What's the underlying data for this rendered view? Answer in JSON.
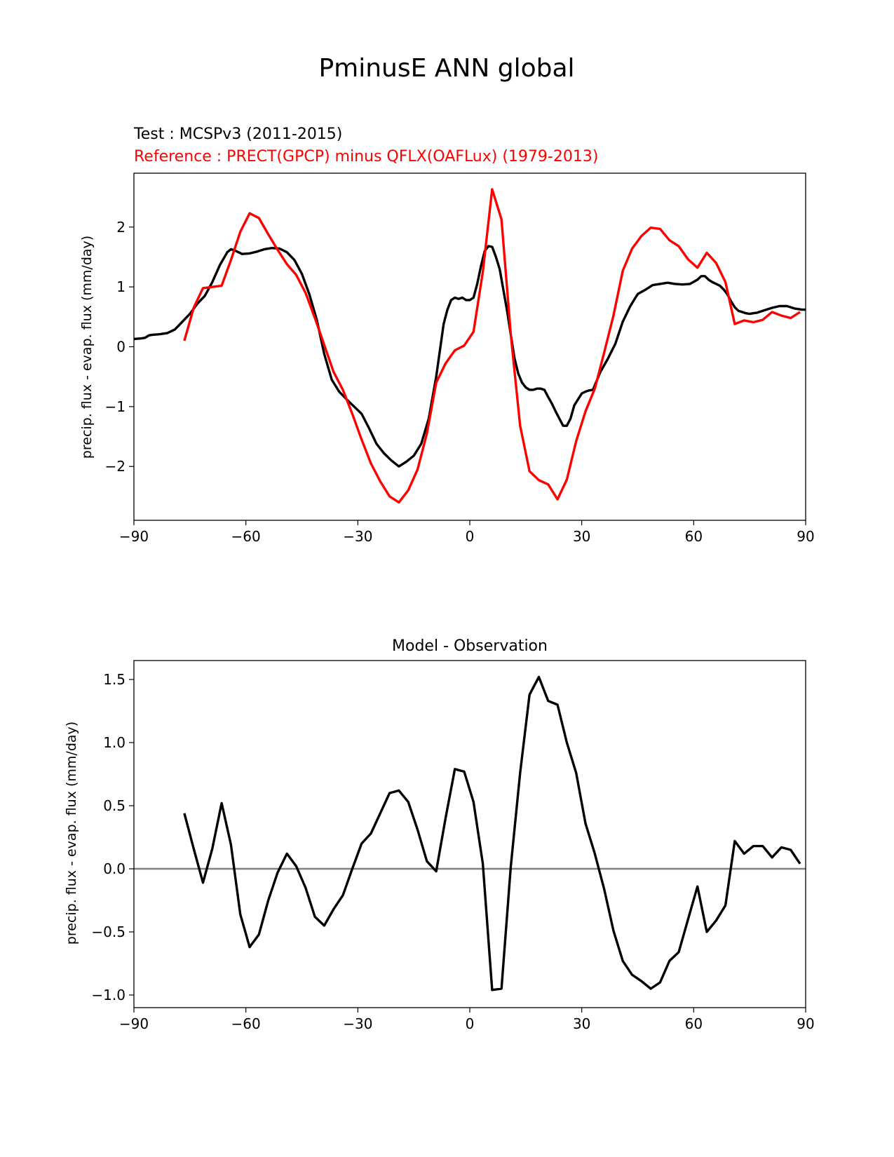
{
  "figure": {
    "title": "PminusE ANN global"
  },
  "chart_data": [
    {
      "type": "line",
      "test_label": "Test : MCSPv3 (2011-2015)",
      "ref_label": "Reference : PRECT(GPCP) minus QFLX(OAFLux) (1979-2013)",
      "ylabel": "precip. flux - evap. flux (mm/day)",
      "xlim": [
        -90,
        90
      ],
      "ylim": [
        -2.9,
        2.9
      ],
      "xticks": [
        -90,
        -60,
        -30,
        0,
        30,
        60,
        90
      ],
      "xtick_labels": [
        "−90",
        "−60",
        "−30",
        "0",
        "30",
        "60",
        "90"
      ],
      "yticks": [
        -2,
        -1,
        0,
        1,
        2
      ],
      "ytick_labels": [
        "−2",
        "−1",
        "0",
        "1",
        "2"
      ],
      "grid": false,
      "series": [
        {
          "color": "#000000",
          "x": [
            -90,
            -88,
            -87,
            -86,
            -85,
            -83,
            -81,
            -79,
            -77,
            -75,
            -73,
            -71,
            -69,
            -67,
            -65,
            -64,
            -63,
            -61,
            -59,
            -57,
            -55,
            -53,
            -51,
            -49,
            -47,
            -45,
            -43,
            -41,
            -39,
            -37,
            -35,
            -33,
            -31,
            -29,
            -27,
            -25,
            -23,
            -21,
            -19,
            -17,
            -15,
            -13,
            -11,
            -9,
            -7,
            -6,
            -5,
            -4,
            -3,
            -2,
            -1,
            0,
            1,
            2,
            3,
            4,
            5,
            6,
            7,
            8,
            9,
            10,
            11,
            12,
            13,
            14,
            15,
            16,
            17,
            18,
            19,
            20,
            21,
            22,
            23,
            24,
            25,
            26,
            27,
            28,
            29,
            30,
            31,
            32,
            33,
            35,
            37,
            39,
            41,
            43,
            45,
            47,
            49,
            51,
            53,
            55,
            57,
            59,
            61,
            62,
            63,
            64,
            65,
            66,
            67,
            68,
            69,
            70,
            71,
            72,
            73,
            74,
            75,
            76,
            77,
            79,
            81,
            83,
            85,
            87,
            89,
            90
          ],
          "y": [
            0.13,
            0.14,
            0.15,
            0.19,
            0.2,
            0.21,
            0.23,
            0.29,
            0.42,
            0.55,
            0.72,
            0.85,
            1.08,
            1.36,
            1.58,
            1.63,
            1.61,
            1.55,
            1.56,
            1.59,
            1.63,
            1.65,
            1.64,
            1.58,
            1.45,
            1.22,
            0.88,
            0.45,
            -0.12,
            -0.55,
            -0.75,
            -0.88,
            -1.0,
            -1.12,
            -1.36,
            -1.62,
            -1.78,
            -1.9,
            -2.0,
            -1.92,
            -1.82,
            -1.62,
            -1.2,
            -0.5,
            0.38,
            0.62,
            0.78,
            0.82,
            0.8,
            0.82,
            0.78,
            0.78,
            0.82,
            1.05,
            1.35,
            1.6,
            1.68,
            1.67,
            1.5,
            1.3,
            0.95,
            0.6,
            0.2,
            -0.2,
            -0.45,
            -0.6,
            -0.68,
            -0.72,
            -0.72,
            -0.7,
            -0.7,
            -0.72,
            -0.84,
            -0.95,
            -1.08,
            -1.2,
            -1.32,
            -1.32,
            -1.2,
            -0.98,
            -0.88,
            -0.78,
            -0.75,
            -0.73,
            -0.72,
            -0.42,
            -0.2,
            0.05,
            0.42,
            0.68,
            0.88,
            0.95,
            1.03,
            1.05,
            1.07,
            1.05,
            1.04,
            1.05,
            1.12,
            1.18,
            1.18,
            1.12,
            1.08,
            1.05,
            1.02,
            0.96,
            0.88,
            0.76,
            0.66,
            0.6,
            0.58,
            0.56,
            0.55,
            0.56,
            0.57,
            0.61,
            0.65,
            0.68,
            0.68,
            0.64,
            0.62,
            0.62
          ]
        },
        {
          "color": "#ff0000",
          "x": [
            -76.5,
            -74,
            -71.5,
            -69,
            -66.5,
            -64,
            -61.5,
            -59,
            -56.5,
            -54,
            -51.5,
            -49,
            -46.5,
            -44,
            -41.5,
            -39,
            -36.5,
            -34,
            -31.5,
            -29,
            -26.5,
            -24,
            -21.5,
            -19,
            -16.5,
            -14,
            -11.5,
            -9,
            -6.5,
            -4,
            -1.5,
            1,
            3.5,
            6,
            8.5,
            11,
            13.5,
            16,
            18.5,
            21,
            23.5,
            26,
            28.5,
            31,
            33.5,
            36,
            38.5,
            41,
            43.5,
            46,
            48.5,
            51,
            53.5,
            56,
            58.5,
            61,
            63.5,
            66,
            68.5,
            71,
            73.5,
            76,
            78.5,
            81,
            83.5,
            86,
            88.5
          ],
          "y": [
            0.1,
            0.65,
            0.98,
            1.0,
            1.02,
            1.45,
            1.92,
            2.23,
            2.15,
            1.88,
            1.62,
            1.38,
            1.2,
            0.9,
            0.48,
            0.03,
            -0.42,
            -0.72,
            -1.12,
            -1.55,
            -1.95,
            -2.25,
            -2.5,
            -2.6,
            -2.4,
            -2.05,
            -1.45,
            -0.6,
            -0.28,
            -0.06,
            0.02,
            0.25,
            1.25,
            2.63,
            2.13,
            0.2,
            -1.32,
            -2.08,
            -2.23,
            -2.3,
            -2.55,
            -2.22,
            -1.58,
            -1.08,
            -0.7,
            -0.1,
            0.52,
            1.27,
            1.64,
            1.85,
            1.99,
            1.97,
            1.78,
            1.68,
            1.46,
            1.32,
            1.57,
            1.4,
            1.08,
            0.38,
            0.44,
            0.41,
            0.45,
            0.58,
            0.52,
            0.48,
            0.58
          ]
        }
      ]
    },
    {
      "type": "line",
      "title": "Model - Observation",
      "ylabel": "precip. flux - evap. flux (mm/day)",
      "xlim": [
        -90,
        90
      ],
      "ylim": [
        -1.1,
        1.65
      ],
      "xticks": [
        -90,
        -60,
        -30,
        0,
        30,
        60,
        90
      ],
      "xtick_labels": [
        "−90",
        "−60",
        "−30",
        "0",
        "30",
        "60",
        "90"
      ],
      "yticks": [
        -1.0,
        -0.5,
        0.0,
        0.5,
        1.0,
        1.5
      ],
      "ytick_labels": [
        "−1.0",
        "−0.5",
        "0.0",
        "0.5",
        "1.0",
        "1.5"
      ],
      "grid": false,
      "zero_line": {
        "y": 0,
        "color": "#808080"
      },
      "series": [
        {
          "color": "#000000",
          "x": [
            -76.5,
            -74,
            -71.5,
            -69,
            -66.5,
            -64,
            -61.5,
            -59,
            -56.5,
            -54,
            -51.5,
            -49,
            -46.5,
            -44,
            -41.5,
            -39,
            -36.5,
            -34,
            -31.5,
            -29,
            -26.5,
            -24,
            -21.5,
            -19,
            -16.5,
            -14,
            -11.5,
            -9,
            -6.5,
            -4,
            -1.5,
            1,
            3.5,
            6,
            8.5,
            11,
            13.5,
            16,
            18.5,
            21,
            23.5,
            26,
            28.5,
            31,
            33.5,
            36,
            38.5,
            41,
            43.5,
            46,
            48.5,
            51,
            53.5,
            56,
            58.5,
            61,
            63.5,
            66,
            68.5,
            71,
            73.5,
            76,
            78.5,
            81,
            83.5,
            86,
            88.5
          ],
          "y": [
            0.44,
            0.16,
            -0.11,
            0.16,
            0.52,
            0.19,
            -0.36,
            -0.62,
            -0.52,
            -0.25,
            -0.03,
            0.12,
            0.02,
            -0.15,
            -0.38,
            -0.45,
            -0.32,
            -0.21,
            0.0,
            0.2,
            0.28,
            0.44,
            0.6,
            0.62,
            0.53,
            0.31,
            0.06,
            -0.02,
            0.4,
            0.79,
            0.77,
            0.53,
            0.04,
            -0.96,
            -0.95,
            0.02,
            0.76,
            1.38,
            1.52,
            1.33,
            1.3,
            1.0,
            0.76,
            0.36,
            0.12,
            -0.16,
            -0.49,
            -0.73,
            -0.84,
            -0.89,
            -0.95,
            -0.9,
            -0.73,
            -0.66,
            -0.4,
            -0.14,
            -0.5,
            -0.41,
            -0.29,
            0.22,
            0.12,
            0.18,
            0.18,
            0.09,
            0.17,
            0.15,
            0.04
          ]
        }
      ]
    }
  ]
}
